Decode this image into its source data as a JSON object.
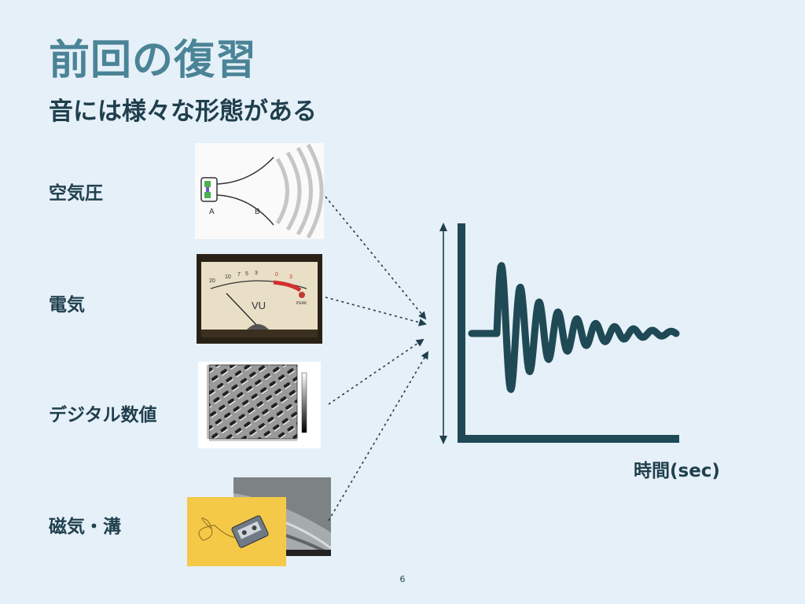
{
  "slide": {
    "title": "前回の復習",
    "subtitle": "音には様々な形態がある",
    "page_number": "6"
  },
  "forms": [
    {
      "label": "空気圧",
      "image_icon": "horn-soundwave-icon",
      "image_text": [
        "A",
        "B"
      ]
    },
    {
      "label": "電気",
      "image_icon": "vu-meter-icon",
      "image_text": [
        "VU",
        "PEAK"
      ]
    },
    {
      "label": "デジタル数値",
      "image_icon": "cd-pit-microscope-icon"
    },
    {
      "label": "磁気・溝",
      "image_icon": "cassette-tape-record-groove-icon"
    }
  ],
  "graph": {
    "xlabel": "時間(sec)",
    "icon": "damped-waveform-icon"
  },
  "colors": {
    "title": "#4a8496",
    "text": "#1f3f4d",
    "graph": "#1f4a55",
    "background": "#e6f0f8"
  }
}
